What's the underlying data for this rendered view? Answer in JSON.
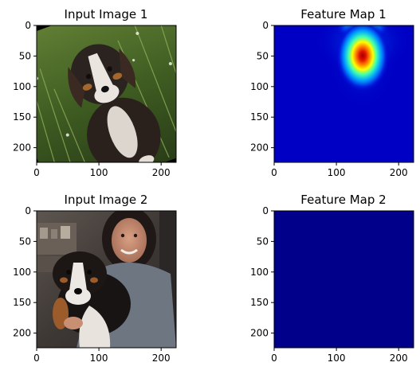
{
  "chart_data": [
    {
      "type": "heatmap",
      "kind": "image",
      "title": "Input Image 1",
      "xlim": [
        0,
        224
      ],
      "ylim": [
        224,
        0
      ],
      "xticks": [
        0,
        100,
        200
      ],
      "yticks": [
        0,
        50,
        100,
        150,
        200
      ],
      "content": "photo: rotated image of a tricolor puppy sitting in tall green grass"
    },
    {
      "type": "heatmap",
      "kind": "feature_map",
      "title": "Feature Map 1",
      "colormap": "jet",
      "xlim": [
        0,
        224
      ],
      "ylim": [
        224,
        0
      ],
      "xticks": [
        0,
        100,
        200
      ],
      "yticks": [
        0,
        50,
        100,
        150,
        200
      ],
      "hotspots": [
        {
          "x": 142,
          "y": 48,
          "intensity": 1.0
        },
        {
          "x": 142,
          "y": 0,
          "intensity": 0.55
        }
      ]
    },
    {
      "type": "heatmap",
      "kind": "image",
      "title": "Input Image 2",
      "xlim": [
        0,
        224
      ],
      "ylim": [
        224,
        0
      ],
      "xticks": [
        0,
        100,
        200
      ],
      "yticks": [
        0,
        50,
        100,
        150,
        200
      ],
      "content": "photo: smiling woman holding a black-white-brown puppy indoors"
    },
    {
      "type": "heatmap",
      "kind": "feature_map",
      "title": "Feature Map 2",
      "colormap": "jet",
      "xlim": [
        0,
        224
      ],
      "ylim": [
        224,
        0
      ],
      "xticks": [
        0,
        100,
        200
      ],
      "yticks": [
        0,
        50,
        100,
        150,
        200
      ],
      "hotspots": [],
      "fill_color": "#00008b"
    }
  ],
  "colors": {
    "grass_dark": "#2f4a1c",
    "grass_light": "#6f8f3a",
    "dog_dark": "#2b2320",
    "dog_white": "#e8e4e0",
    "room_dark": "#3a3434",
    "skin": "#c88f73",
    "sweater": "#6e7681",
    "jet_low": "#00008b"
  }
}
